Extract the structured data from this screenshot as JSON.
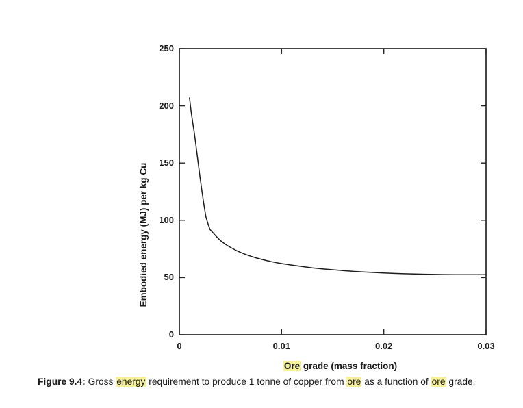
{
  "colors": {
    "highlight": "#f6f29b",
    "line": "#1c1c1c",
    "axis": "#262626",
    "text": "#1a1a1a",
    "background": "#ffffff"
  },
  "chart_data": {
    "type": "line",
    "title": "",
    "xlabel": "Ore grade (mass fraction)",
    "ylabel": "Embodied energy (MJ) per kg Cu",
    "xlabel_segments": [
      {
        "text": "Ore",
        "highlight": true
      },
      {
        "text": " grade (mass fraction)",
        "highlight": false
      }
    ],
    "xlim": [
      0,
      0.03
    ],
    "ylim": [
      0,
      250
    ],
    "grid": false,
    "legend": "none",
    "xticks": [
      {
        "v": 0,
        "label": "0"
      },
      {
        "v": 0.01,
        "label": "0.01"
      },
      {
        "v": 0.02,
        "label": "0.02"
      },
      {
        "v": 0.03,
        "label": "0.03"
      }
    ],
    "yticks": [
      {
        "v": 0,
        "label": "0"
      },
      {
        "v": 50,
        "label": "50"
      },
      {
        "v": 100,
        "label": "100"
      },
      {
        "v": 150,
        "label": "150"
      },
      {
        "v": 200,
        "label": "200"
      },
      {
        "v": 250,
        "label": "250"
      }
    ],
    "series": [
      {
        "name": "embodied-energy-vs-ore-grade",
        "points": [
          [
            0.001,
            207
          ],
          [
            0.0011,
            199
          ],
          [
            0.0012,
            192
          ],
          [
            0.0013,
            186
          ],
          [
            0.0014,
            180
          ],
          [
            0.0015,
            174
          ],
          [
            0.0016,
            167
          ],
          [
            0.0017,
            160
          ],
          [
            0.0018,
            153
          ],
          [
            0.002,
            139
          ],
          [
            0.0022,
            126
          ],
          [
            0.0024,
            114
          ],
          [
            0.0026,
            103
          ],
          [
            0.0028,
            97
          ],
          [
            0.003,
            92
          ],
          [
            0.0032,
            90
          ],
          [
            0.0034,
            88
          ],
          [
            0.0036,
            86
          ],
          [
            0.004,
            82.5
          ],
          [
            0.0045,
            79
          ],
          [
            0.005,
            76.3
          ],
          [
            0.0055,
            73.9
          ],
          [
            0.006,
            71.9
          ],
          [
            0.0065,
            70.1
          ],
          [
            0.007,
            68.6
          ],
          [
            0.0075,
            67.2
          ],
          [
            0.008,
            66
          ],
          [
            0.0085,
            64.9
          ],
          [
            0.009,
            63.9
          ],
          [
            0.0095,
            63
          ],
          [
            0.01,
            62.2
          ],
          [
            0.011,
            60.8
          ],
          [
            0.012,
            59.6
          ],
          [
            0.013,
            58.5
          ],
          [
            0.014,
            57.6
          ],
          [
            0.015,
            56.8
          ],
          [
            0.016,
            56.1
          ],
          [
            0.017,
            55.4
          ],
          [
            0.018,
            54.9
          ],
          [
            0.019,
            54.4
          ],
          [
            0.02,
            54
          ],
          [
            0.021,
            53.6
          ],
          [
            0.022,
            53.3
          ],
          [
            0.023,
            53.1
          ],
          [
            0.024,
            52.9
          ],
          [
            0.025,
            52.7
          ],
          [
            0.026,
            52.6
          ],
          [
            0.027,
            52.5
          ],
          [
            0.028,
            52.5
          ],
          [
            0.029,
            52.5
          ],
          [
            0.03,
            52.5
          ]
        ]
      }
    ]
  },
  "caption": {
    "label": "Figure 9.4:",
    "segments": [
      {
        "text": " Gross ",
        "highlight": false
      },
      {
        "text": "energy",
        "highlight": true
      },
      {
        "text": " requirement to produce 1 tonne of copper from ",
        "highlight": false
      },
      {
        "text": "ore",
        "highlight": true
      },
      {
        "text": " as a function of ",
        "highlight": false
      },
      {
        "text": "ore",
        "highlight": true
      },
      {
        "text": " grade.",
        "highlight": false
      }
    ]
  }
}
